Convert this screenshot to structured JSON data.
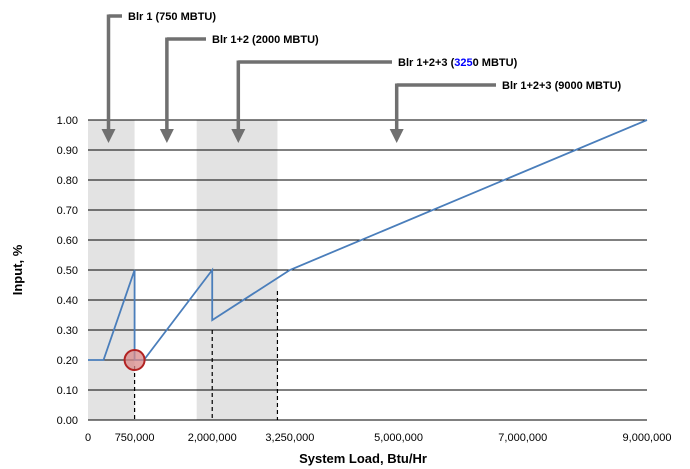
{
  "chart_data": {
    "type": "line",
    "xlabel": "System Load, Btu/Hr",
    "ylabel": "Input, %",
    "xlim": [
      0,
      9000000
    ],
    "ylim": [
      0,
      1.0
    ],
    "grid": true,
    "x_ticks": [
      {
        "value": 0,
        "label": "0"
      },
      {
        "value": 750000,
        "label": "750,000"
      },
      {
        "value": 2000000,
        "label": "2,000,000"
      },
      {
        "value": 3250000,
        "label": "3,250,000"
      },
      {
        "value": 5000000,
        "label": "5,000,000"
      },
      {
        "value": 7000000,
        "label": "7,000,000"
      },
      {
        "value": 9000000,
        "label": "9,000,000"
      }
    ],
    "y_ticks": [
      {
        "value": 0.0,
        "label": "0.00"
      },
      {
        "value": 0.1,
        "label": "0.10"
      },
      {
        "value": 0.2,
        "label": "0.20"
      },
      {
        "value": 0.3,
        "label": "0.30"
      },
      {
        "value": 0.4,
        "label": "0.40"
      },
      {
        "value": 0.5,
        "label": "0.50"
      },
      {
        "value": 0.6,
        "label": "0.60"
      },
      {
        "value": 0.7,
        "label": "0.70"
      },
      {
        "value": 0.8,
        "label": "0.80"
      },
      {
        "value": 0.9,
        "label": "0.90"
      },
      {
        "value": 1.0,
        "label": "1.00"
      }
    ],
    "series": [
      {
        "color": "#4a7ebb",
        "x": [
          0,
          250000,
          750000,
          750000,
          900000,
          2000000,
          2000000,
          3250000,
          9000000
        ],
        "y": [
          0.2,
          0.2,
          0.5,
          0.2,
          0.2,
          0.5,
          0.333,
          0.5,
          1.0
        ]
      }
    ],
    "shaded_bands": [
      {
        "x": [
          0,
          750000
        ],
        "color": "#e3e3e3"
      },
      {
        "x": [
          1750000,
          3050000
        ],
        "color": "#e3e3e3"
      }
    ],
    "marker": {
      "x": 750000,
      "y": 0.2,
      "fill": "#d88a8a",
      "stroke": "#b22222"
    },
    "dashed_verticals": [
      {
        "x": 750000,
        "y_top": 0.18
      },
      {
        "x": 2000000,
        "y_top": 0.3
      },
      {
        "x": 3050000,
        "y_top": 0.43
      }
    ],
    "annotations": [
      {
        "prefix": "Blr 1 (750 MBTU)",
        "highlight": "",
        "suffix": "",
        "arrow_x": 330000,
        "highlight_color": ""
      },
      {
        "prefix": "Blr 1+2 (2000 MBTU)",
        "highlight": "",
        "suffix": "",
        "arrow_x": 1270000,
        "highlight_color": ""
      },
      {
        "prefix": "Blr 1+2+3 (",
        "highlight": "325",
        "suffix": "0 MBTU)",
        "arrow_x": 2420000,
        "highlight_color": "#0000ff"
      },
      {
        "prefix": "Blr 1+2+3 (9000 MBTU)",
        "highlight": "",
        "suffix": "",
        "arrow_x": 4970000,
        "highlight_color": ""
      }
    ]
  }
}
